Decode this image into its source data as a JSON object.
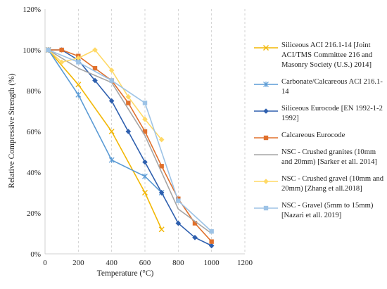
{
  "chart_data": {
    "type": "line",
    "xlabel": "Temperature (°C)",
    "ylabel": "Relative Compressive Strength  (%)",
    "xlim": [
      0,
      1200
    ],
    "ylim": [
      0,
      120
    ],
    "xticks": [
      "0",
      "200",
      "400",
      "600",
      "800",
      "1000",
      "1200"
    ],
    "yticks": [
      "0%",
      "20%",
      "40%",
      "60%",
      "80%",
      "100%",
      "120%"
    ],
    "grid": "vertical dashed",
    "legend_position": "right",
    "series": [
      {
        "name": "Siliceous ACI 216.1-14 [Joint ACI/TMS Committee 216 and Masonry Society (U.S.) 2014]",
        "color": "#f2b705",
        "marker": "x",
        "x": [
          20,
          200,
          400,
          600,
          700
        ],
        "y": [
          100,
          83,
          60,
          30,
          12
        ]
      },
      {
        "name": "Carbonate/Calcareous ACI 216.1-14",
        "color": "#5b9bd5",
        "marker": "asterisk",
        "x": [
          20,
          200,
          400,
          600,
          700
        ],
        "y": [
          100,
          78,
          46,
          38,
          30
        ]
      },
      {
        "name": "Siliceous Eurocode [EN 1992-1-2 1992]",
        "color": "#2e5fae",
        "marker": "diamond",
        "x": [
          20,
          100,
          200,
          300,
          400,
          500,
          600,
          700,
          800,
          900,
          1000
        ],
        "y": [
          100,
          100,
          95,
          85,
          75,
          60,
          45,
          30,
          15,
          8,
          4
        ]
      },
      {
        "name": "Calcareous Eurocode",
        "color": "#e0702c",
        "marker": "square",
        "x": [
          20,
          100,
          200,
          300,
          400,
          500,
          600,
          700,
          800,
          900,
          1000
        ],
        "y": [
          100,
          100,
          97,
          91,
          85,
          74,
          60,
          43,
          27,
          15,
          6
        ]
      },
      {
        "name": "NSC - Crushed granites (10mm and 20mm) [Sarker et all. 2014]",
        "color": "#a5a5a5",
        "marker": "none",
        "x": [
          20,
          200,
          400,
          600,
          800,
          1000
        ],
        "y": [
          100,
          91,
          84,
          58,
          22,
          10
        ]
      },
      {
        "name": "NSC - Crushed gravel (10mm and 20mm) [Zhang et all.2018]",
        "color": "#ffd966",
        "marker": "diamond",
        "x": [
          20,
          100,
          200,
          300,
          400,
          500,
          600,
          700
        ],
        "y": [
          100,
          94,
          96,
          100,
          90,
          77,
          66,
          56
        ]
      },
      {
        "name": "NSC - Gravel (5mm to 15mm) [Nazari et all. 2019]",
        "color": "#9dc3e6",
        "marker": "square",
        "x": [
          20,
          200,
          400,
          600,
          800,
          1000
        ],
        "y": [
          100,
          94,
          85,
          74,
          26,
          11
        ]
      }
    ]
  }
}
